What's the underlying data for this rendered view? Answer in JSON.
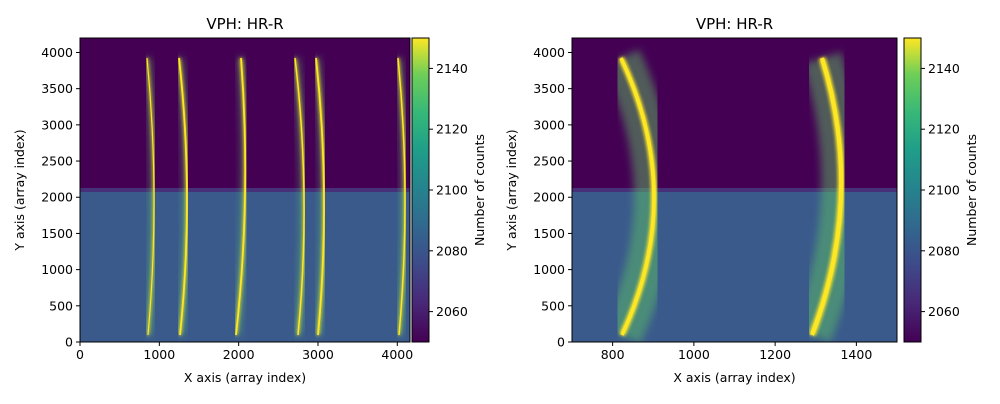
{
  "chart_data": [
    {
      "type": "heatmap",
      "title": "VPH: HR-R",
      "x_label": "X axis (array index)",
      "y_label": "Y axis (array index)",
      "xlim": [
        0,
        4160
      ],
      "ylim": [
        0,
        4200
      ],
      "xticks": [
        0,
        1000,
        2000,
        3000,
        4000
      ],
      "yticks": [
        0,
        500,
        1000,
        1500,
        2000,
        2500,
        3000,
        3500,
        4000
      ],
      "colormap": "viridis",
      "colorbar": {
        "label": "Number of counts",
        "lim": [
          2050,
          2150
        ],
        "ticks": [
          2060,
          2080,
          2100,
          2120,
          2140
        ]
      }
    },
    {
      "type": "heatmap",
      "title": "VPH: HR-R",
      "x_label": "X axis (array index)",
      "y_label": "Y axis (array index)",
      "xlim": [
        700,
        1500
      ],
      "ylim": [
        0,
        4200
      ],
      "xticks": [
        800,
        1000,
        1200,
        1400
      ],
      "yticks": [
        0,
        500,
        1000,
        1500,
        2000,
        2500,
        3000,
        3500,
        4000
      ],
      "colormap": "viridis",
      "colorbar": {
        "label": "Number of counts",
        "lim": [
          2050,
          2150
        ],
        "ticks": [
          2060,
          2080,
          2100,
          2120,
          2140
        ]
      }
    }
  ]
}
